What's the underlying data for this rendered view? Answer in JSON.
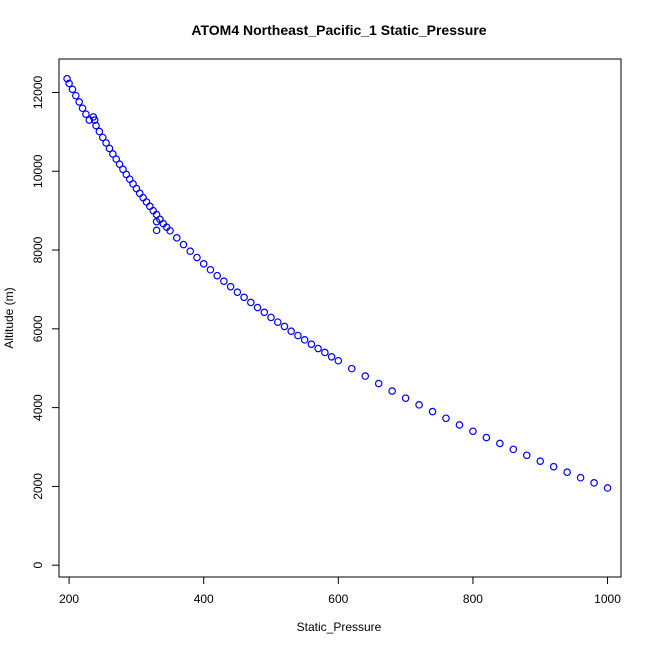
{
  "chart_data": {
    "type": "scatter",
    "title": "ATOM4 Northeast_Pacific_1 Static_Pressure",
    "xlabel": "Static_Pressure",
    "ylabel": "Altitude (m)",
    "xlim": [
      185,
      1020
    ],
    "ylim": [
      -300,
      12850
    ],
    "xticks": [
      200,
      400,
      600,
      800,
      1000
    ],
    "yticks": [
      0,
      2000,
      4000,
      6000,
      8000,
      10000,
      12000
    ],
    "marker": "open-circle",
    "marker_color": "#0000ff",
    "grid": false,
    "legend": "none",
    "series": [
      {
        "points": [
          [
            197,
            12350
          ],
          [
            200,
            12230
          ],
          [
            205,
            12080
          ],
          [
            210,
            11920
          ],
          [
            215,
            11760
          ],
          [
            220,
            11600
          ],
          [
            225,
            11450
          ],
          [
            230,
            11300
          ],
          [
            236,
            11380
          ],
          [
            238,
            11300
          ],
          [
            240,
            11160
          ],
          [
            245,
            11010
          ],
          [
            250,
            10860
          ],
          [
            255,
            10720
          ],
          [
            260,
            10580
          ],
          [
            265,
            10440
          ],
          [
            270,
            10310
          ],
          [
            275,
            10180
          ],
          [
            280,
            10050
          ],
          [
            285,
            9920
          ],
          [
            290,
            9800
          ],
          [
            295,
            9680
          ],
          [
            300,
            9560
          ],
          [
            305,
            9440
          ],
          [
            310,
            9330
          ],
          [
            315,
            9220
          ],
          [
            320,
            9110
          ],
          [
            325,
            9000
          ],
          [
            330,
            8900
          ],
          [
            330,
            8720
          ],
          [
            330,
            8500
          ],
          [
            335,
            8780
          ],
          [
            340,
            8670
          ],
          [
            345,
            8580
          ],
          [
            350,
            8490
          ],
          [
            360,
            8310
          ],
          [
            370,
            8140
          ],
          [
            380,
            7970
          ],
          [
            390,
            7810
          ],
          [
            400,
            7650
          ],
          [
            410,
            7500
          ],
          [
            420,
            7350
          ],
          [
            430,
            7210
          ],
          [
            440,
            7070
          ],
          [
            450,
            6930
          ],
          [
            460,
            6800
          ],
          [
            470,
            6670
          ],
          [
            480,
            6540
          ],
          [
            490,
            6420
          ],
          [
            500,
            6290
          ],
          [
            510,
            6170
          ],
          [
            520,
            6060
          ],
          [
            530,
            5940
          ],
          [
            540,
            5830
          ],
          [
            550,
            5720
          ],
          [
            560,
            5610
          ],
          [
            570,
            5500
          ],
          [
            580,
            5400
          ],
          [
            590,
            5290
          ],
          [
            600,
            5190
          ],
          [
            620,
            4990
          ],
          [
            640,
            4800
          ],
          [
            660,
            4610
          ],
          [
            680,
            4420
          ],
          [
            700,
            4240
          ],
          [
            720,
            4070
          ],
          [
            740,
            3900
          ],
          [
            760,
            3730
          ],
          [
            780,
            3560
          ],
          [
            800,
            3400
          ],
          [
            820,
            3240
          ],
          [
            840,
            3090
          ],
          [
            860,
            2940
          ],
          [
            880,
            2790
          ],
          [
            900,
            2640
          ],
          [
            920,
            2500
          ],
          [
            940,
            2360
          ],
          [
            960,
            2220
          ],
          [
            980,
            2090
          ],
          [
            1000,
            1960
          ]
        ]
      }
    ]
  }
}
